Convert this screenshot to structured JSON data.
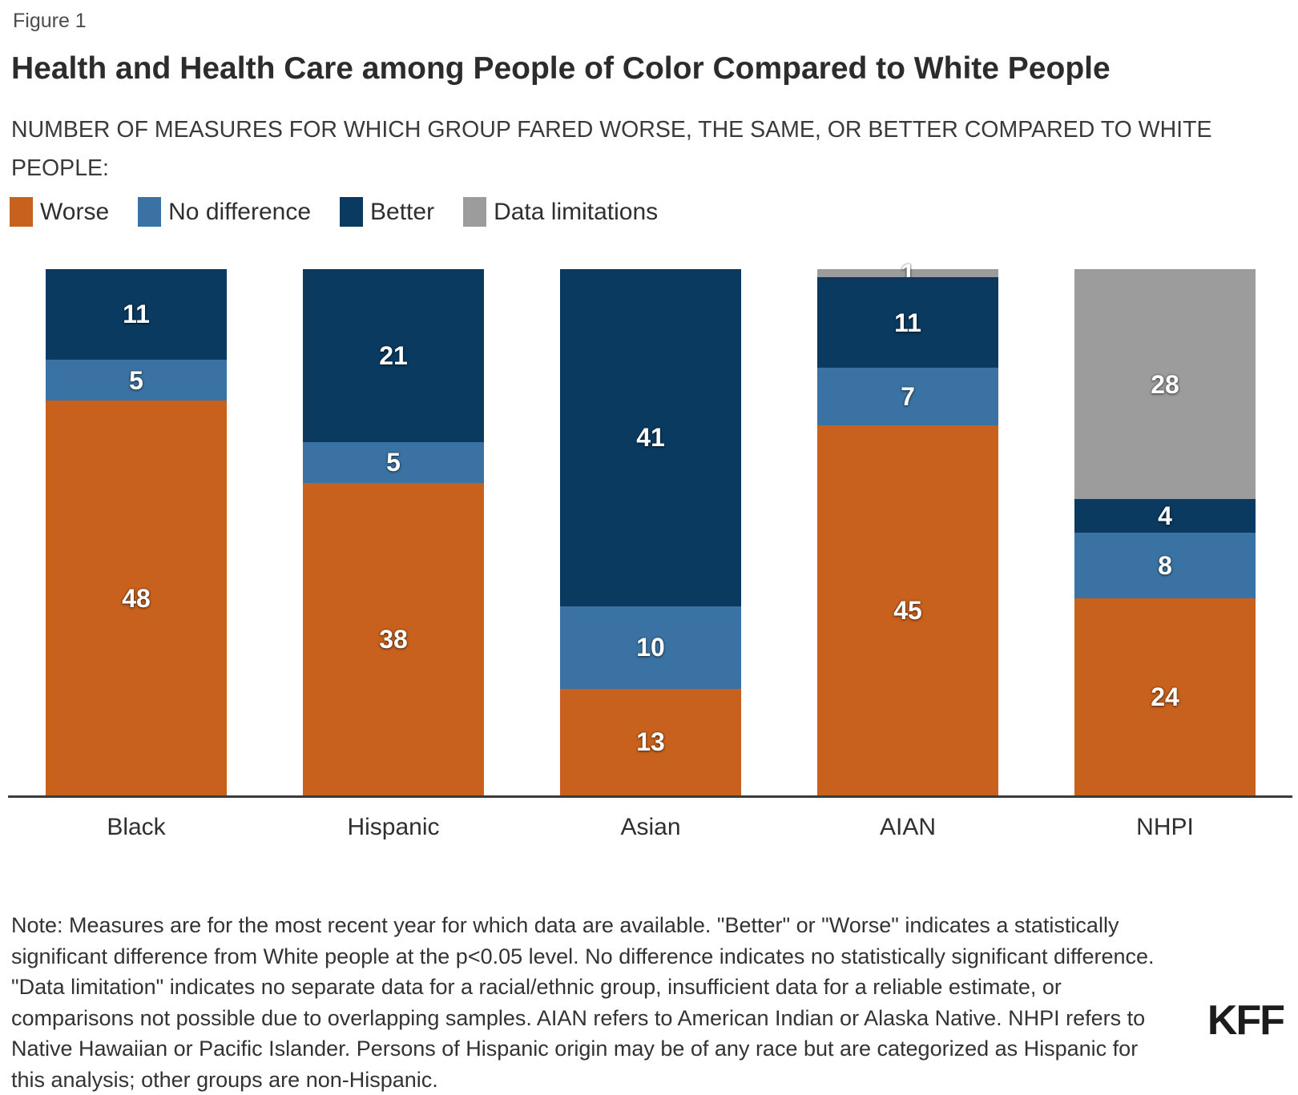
{
  "figure_label": "Figure 1",
  "title": "Health and Health Care among People of Color Compared to White People",
  "subtitle": "NUMBER OF MEASURES FOR WHICH GROUP FARED WORSE, THE SAME, OR BETTER COMPARED TO WHITE PEOPLE:",
  "colors": {
    "worse": "#c8611d",
    "no_difference": "#3a73a3",
    "better": "#0a3a60",
    "data_limitations": "#9c9c9c",
    "axis_line": "#3b3b3b"
  },
  "legend": [
    {
      "label": "Worse",
      "color": "#c8611d"
    },
    {
      "label": "No difference",
      "color": "#3a73a3"
    },
    {
      "label": "Better",
      "color": "#0a3a60"
    },
    {
      "label": "Data limitations",
      "color": "#9c9c9c"
    }
  ],
  "chart_data": {
    "type": "bar",
    "stacked": true,
    "categories": [
      "Black",
      "Hispanic",
      "Asian",
      "AIAN",
      "NHPI"
    ],
    "series": [
      {
        "name": "Worse",
        "color": "#c8611d",
        "values": [
          48,
          38,
          13,
          45,
          24
        ]
      },
      {
        "name": "No difference",
        "color": "#3a73a3",
        "values": [
          5,
          5,
          10,
          7,
          8
        ]
      },
      {
        "name": "Better",
        "color": "#0a3a60",
        "values": [
          11,
          21,
          41,
          11,
          4
        ]
      },
      {
        "name": "Data limitations",
        "color": "#9c9c9c",
        "values": [
          0,
          0,
          0,
          1,
          28
        ]
      }
    ],
    "stack_total": 64,
    "xlabel": "",
    "ylabel": "",
    "ylim": [
      0,
      64
    ],
    "grid": false,
    "legend_position": "top",
    "value_labels": "inside-white"
  },
  "note": "Note: Measures are for the most recent year for which data are available. \"Better\" or \"Worse\" indicates a statistically significant difference from White people at the p<0.05 level. No difference indicates no statistically significant difference. \"Data limitation\" indicates no separate data for a racial/ethnic group, insufficient data for a reliable estimate, or comparisons not possible due to overlapping samples. AIAN refers to American Indian or Alaska Native. NHPI refers to Native Hawaiian or Pacific Islander. Persons of Hispanic origin may be of any race but are categorized as Hispanic for this analysis; other groups are non-Hispanic.",
  "logo": "KFF"
}
